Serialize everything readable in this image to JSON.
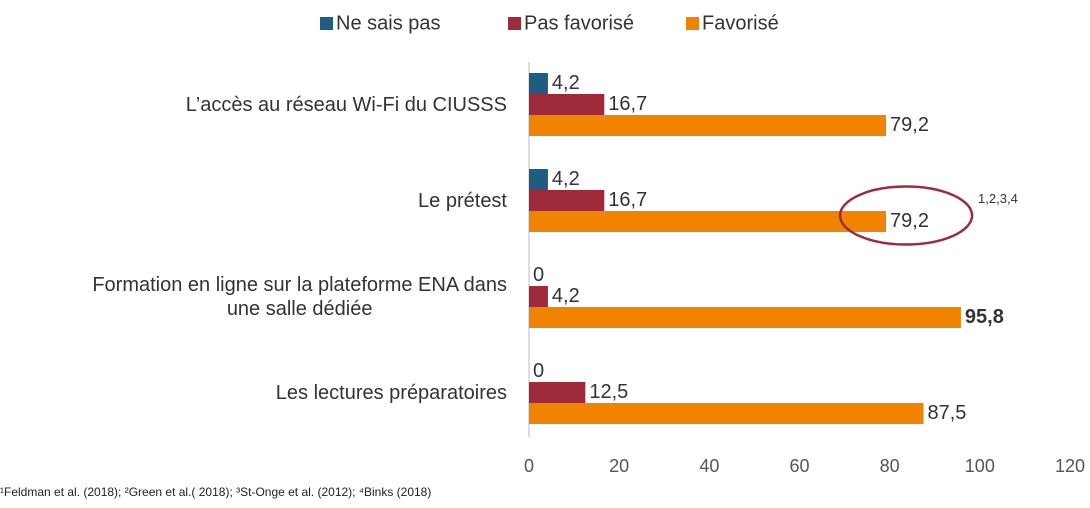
{
  "chart_data": {
    "type": "bar",
    "orientation": "horizontal",
    "categories": [
      "L’accès au réseau Wi-Fi du CIUSSS",
      "Le prétest",
      "Formation en ligne sur la plateforme ENA dans\nune salle dédiée",
      "Les lectures préparatoires"
    ],
    "series": [
      {
        "name": "Ne sais pas",
        "color": "#1f5c82",
        "values": [
          4.2,
          4.2,
          0,
          0
        ],
        "value_labels": [
          "4,2",
          "4,2",
          "0",
          "0"
        ]
      },
      {
        "name": "Pas favorisé",
        "color": "#9e2a3a",
        "values": [
          16.7,
          16.7,
          4.2,
          12.5
        ],
        "value_labels": [
          "16,7",
          "16,7",
          "4,2",
          "12,5"
        ]
      },
      {
        "name": "Favorisé",
        "color": "#f08300",
        "values": [
          79.2,
          79.2,
          95.8,
          87.5
        ],
        "value_labels": [
          "79,2",
          "79,2",
          "95,8",
          "87,5"
        ],
        "bold_index": 2
      }
    ],
    "xlim": [
      0,
      120
    ],
    "xticks": [
      0,
      20,
      40,
      60,
      80,
      100,
      120
    ],
    "legend": "top",
    "annotation": {
      "text": "1,2,3,4",
      "category": 1,
      "series": 2,
      "color": "#9e2a3a"
    },
    "footnote": "¹Feldman et al. (2018); ²Green et al.( 2018); ³St-Onge et al. (2012); ⁴Binks (2018)"
  }
}
